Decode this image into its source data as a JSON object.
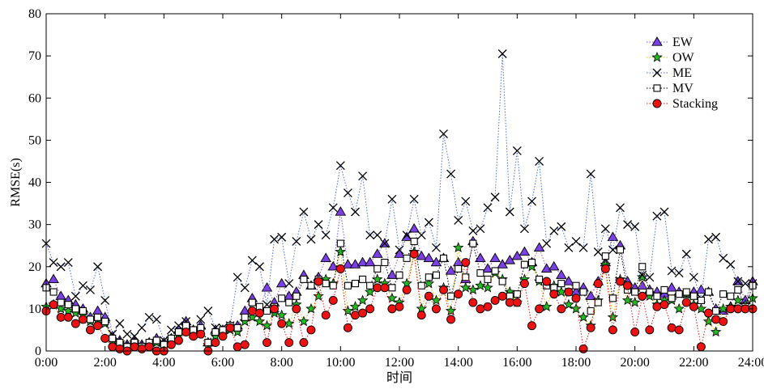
{
  "chart_data": {
    "type": "line",
    "title": "",
    "xlabel": "时间",
    "ylabel": "RMSE(s)",
    "xlim": [
      0,
      24
    ],
    "ylim": [
      0,
      80
    ],
    "x_ticks": [
      "0:00",
      "2:00",
      "4:00",
      "6:00",
      "8:00",
      "10:00",
      "12:00",
      "14:00",
      "16:00",
      "18:00",
      "20:00",
      "22:00",
      "24:00"
    ],
    "y_ticks": [
      "0",
      "10",
      "20",
      "30",
      "40",
      "50",
      "60",
      "70",
      "80"
    ],
    "grid": false,
    "legend_position": "top-right",
    "x": [
      0,
      0.25,
      0.5,
      0.75,
      1,
      1.25,
      1.5,
      1.75,
      2,
      2.25,
      2.5,
      2.75,
      3,
      3.25,
      3.5,
      3.75,
      4,
      4.25,
      4.5,
      4.75,
      5,
      5.25,
      5.5,
      5.75,
      6,
      6.25,
      6.5,
      6.75,
      7,
      7.25,
      7.5,
      7.75,
      8,
      8.25,
      8.5,
      8.75,
      9,
      9.25,
      9.5,
      9.75,
      10,
      10.25,
      10.5,
      10.75,
      11,
      11.25,
      11.5,
      11.75,
      12,
      12.25,
      12.5,
      12.75,
      13,
      13.25,
      13.5,
      13.75,
      14,
      14.25,
      14.5,
      14.75,
      15,
      15.25,
      15.5,
      15.75,
      16,
      16.25,
      16.5,
      16.75,
      17,
      17.25,
      17.5,
      17.75,
      18,
      18.25,
      18.5,
      18.75,
      19,
      19.25,
      19.5,
      19.75,
      20,
      20.25,
      20.5,
      20.75,
      21,
      21.25,
      21.5,
      21.75,
      22,
      22.25,
      22.5,
      22.75,
      23,
      23.25,
      23.5,
      23.75,
      24
    ],
    "series": [
      {
        "name": "EW",
        "marker": "triangle",
        "color": "#7b3fe4",
        "line_color": "#8a4fd8",
        "values": [
          16.0,
          17.0,
          13.0,
          12.0,
          11.0,
          10.0,
          8.0,
          9.5,
          8.0,
          3.5,
          2.5,
          1.5,
          2.5,
          1.5,
          2.0,
          3.0,
          2.0,
          3.0,
          5.0,
          7.0,
          5.0,
          6.0,
          2.0,
          5.0,
          5.0,
          6.0,
          6.0,
          9.5,
          12.5,
          10.0,
          15.0,
          11.5,
          16.0,
          13.0,
          14.0,
          18.0,
          15.5,
          17.5,
          22.0,
          20.0,
          33.0,
          20.5,
          20.5,
          21.0,
          21.0,
          23.0,
          25.5,
          18.0,
          23.0,
          27.0,
          29.0,
          22.5,
          22.0,
          21.0,
          22.0,
          19.0,
          21.0,
          17.0,
          26.0,
          22.0,
          19.5,
          22.0,
          20.5,
          21.5,
          22.5,
          23.5,
          21.0,
          24.5,
          19.5,
          20.0,
          18.0,
          16.5,
          14.0,
          15.0,
          13.0,
          16.5,
          21.0,
          27.0,
          25.0,
          16.5,
          15.0,
          15.5,
          14.5,
          14.0,
          13.5,
          15.0,
          14.0,
          13.5,
          14.0,
          14.5,
          14.0,
          10.0,
          9.5,
          10.5,
          16.5,
          12.0,
          16.5
        ]
      },
      {
        "name": "OW",
        "marker": "star",
        "color": "#22bb22",
        "line_color": "#c8c800",
        "values": [
          10.5,
          11.0,
          10.0,
          9.5,
          9.0,
          8.5,
          7.0,
          7.5,
          6.5,
          2.5,
          2.0,
          1.0,
          2.0,
          1.0,
          1.5,
          2.0,
          1.5,
          2.5,
          4.0,
          5.0,
          4.0,
          5.0,
          1.5,
          3.5,
          4.0,
          5.0,
          4.5,
          7.0,
          8.0,
          7.0,
          6.0,
          9.0,
          8.5,
          6.5,
          11.0,
          7.0,
          10.0,
          13.0,
          17.0,
          16.0,
          23.5,
          9.5,
          10.5,
          12.0,
          14.0,
          17.0,
          16.0,
          12.5,
          11.5,
          16.0,
          23.5,
          10.0,
          16.0,
          12.0,
          15.0,
          9.5,
          24.5,
          15.0,
          14.5,
          15.5,
          15.0,
          18.5,
          17.0,
          14.0,
          11.5,
          17.0,
          20.0,
          16.5,
          10.5,
          15.5,
          14.0,
          11.0,
          10.0,
          8.0,
          6.0,
          12.0,
          20.5,
          8.0,
          17.0,
          12.0,
          11.5,
          17.5,
          13.0,
          11.0,
          12.0,
          12.0,
          10.0,
          13.5,
          11.0,
          10.0,
          7.0,
          4.5,
          10.0,
          10.5,
          12.0,
          11.0,
          12.5
        ]
      },
      {
        "name": "ME",
        "marker": "x",
        "color": "#000000",
        "line_color": "#4a6fd8",
        "values": [
          25.5,
          21.0,
          20.0,
          21.0,
          13.0,
          15.5,
          14.5,
          20.0,
          12.0,
          4.0,
          6.5,
          4.0,
          3.5,
          5.5,
          8.0,
          7.5,
          2.5,
          5.0,
          6.0,
          7.0,
          4.0,
          7.5,
          9.5,
          5.5,
          5.5,
          6.0,
          17.5,
          15.0,
          21.5,
          20.0,
          11.0,
          26.5,
          27.0,
          16.0,
          26.0,
          33.0,
          26.5,
          30.0,
          27.5,
          34.0,
          44.0,
          37.5,
          33.0,
          41.5,
          27.5,
          27.5,
          25.5,
          36.0,
          24.0,
          27.5,
          36.0,
          27.5,
          30.5,
          24.5,
          51.5,
          42.0,
          31.0,
          35.5,
          28.5,
          29.0,
          34.0,
          36.5,
          70.5,
          33.0,
          47.5,
          29.0,
          35.5,
          45.0,
          25.5,
          28.5,
          29.5,
          24.5,
          26.0,
          24.5,
          42.0,
          23.5,
          29.0,
          24.0,
          34.0,
          30.0,
          29.5,
          18.0,
          17.5,
          32.0,
          33.0,
          19.0,
          18.5,
          23.0,
          17.5,
          12.5,
          26.5,
          27.0,
          22.0,
          20.5,
          16.5,
          16.0,
          16.0
        ]
      },
      {
        "name": "MV",
        "marker": "square",
        "color": "#000000",
        "line_color": "#000000",
        "values": [
          15.0,
          14.0,
          11.5,
          11.0,
          10.0,
          9.5,
          7.5,
          8.0,
          7.0,
          3.0,
          2.0,
          1.0,
          2.0,
          1.0,
          2.0,
          2.5,
          1.5,
          3.0,
          4.5,
          6.0,
          5.0,
          5.5,
          2.0,
          4.5,
          5.0,
          6.0,
          5.5,
          8.0,
          11.5,
          10.5,
          9.5,
          10.5,
          12.5,
          11.5,
          13.0,
          17.0,
          15.5,
          17.0,
          16.0,
          15.5,
          25.5,
          15.5,
          16.0,
          17.0,
          15.5,
          19.5,
          21.0,
          15.0,
          18.0,
          22.0,
          26.0,
          15.5,
          17.5,
          18.0,
          22.0,
          13.0,
          19.5,
          17.5,
          25.5,
          18.5,
          17.0,
          19.0,
          16.5,
          13.0,
          13.5,
          20.5,
          21.0,
          17.0,
          15.5,
          15.0,
          16.0,
          14.0,
          15.5,
          14.0,
          9.5,
          11.5,
          22.5,
          12.5,
          24.0,
          14.5,
          14.0,
          20.0,
          14.0,
          13.0,
          14.5,
          12.5,
          13.5,
          14.0,
          13.0,
          12.0,
          14.0,
          9.5,
          13.5,
          13.0,
          14.5,
          10.5,
          15.5
        ]
      },
      {
        "name": "Stacking",
        "marker": "circle",
        "color": "#ee1111",
        "line_color": "#ee1111",
        "values": [
          9.5,
          11.0,
          8.0,
          8.0,
          6.5,
          7.5,
          5.0,
          6.0,
          3.0,
          1.0,
          0.5,
          0.0,
          1.0,
          0.5,
          1.0,
          0.0,
          0.0,
          1.5,
          2.5,
          4.5,
          3.5,
          4.0,
          0.0,
          2.0,
          3.5,
          5.5,
          1.0,
          1.5,
          9.5,
          9.0,
          2.0,
          10.0,
          6.5,
          2.0,
          10.0,
          2.0,
          5.0,
          16.5,
          8.5,
          12.0,
          19.5,
          5.5,
          8.5,
          9.0,
          10.0,
          15.0,
          15.0,
          10.0,
          10.5,
          14.5,
          23.0,
          8.5,
          13.0,
          10.0,
          14.5,
          7.5,
          13.5,
          21.0,
          11.5,
          10.0,
          10.5,
          12.0,
          13.0,
          11.5,
          11.5,
          16.0,
          6.0,
          10.0,
          16.5,
          13.5,
          10.0,
          14.0,
          12.5,
          0.5,
          5.5,
          16.0,
          19.5,
          5.0,
          16.5,
          15.5,
          4.5,
          13.0,
          5.0,
          10.5,
          11.0,
          5.5,
          5.0,
          11.5,
          10.5,
          1.0,
          9.0,
          7.5,
          7.0,
          10.0,
          10.0,
          10.0,
          10.0
        ]
      }
    ]
  }
}
